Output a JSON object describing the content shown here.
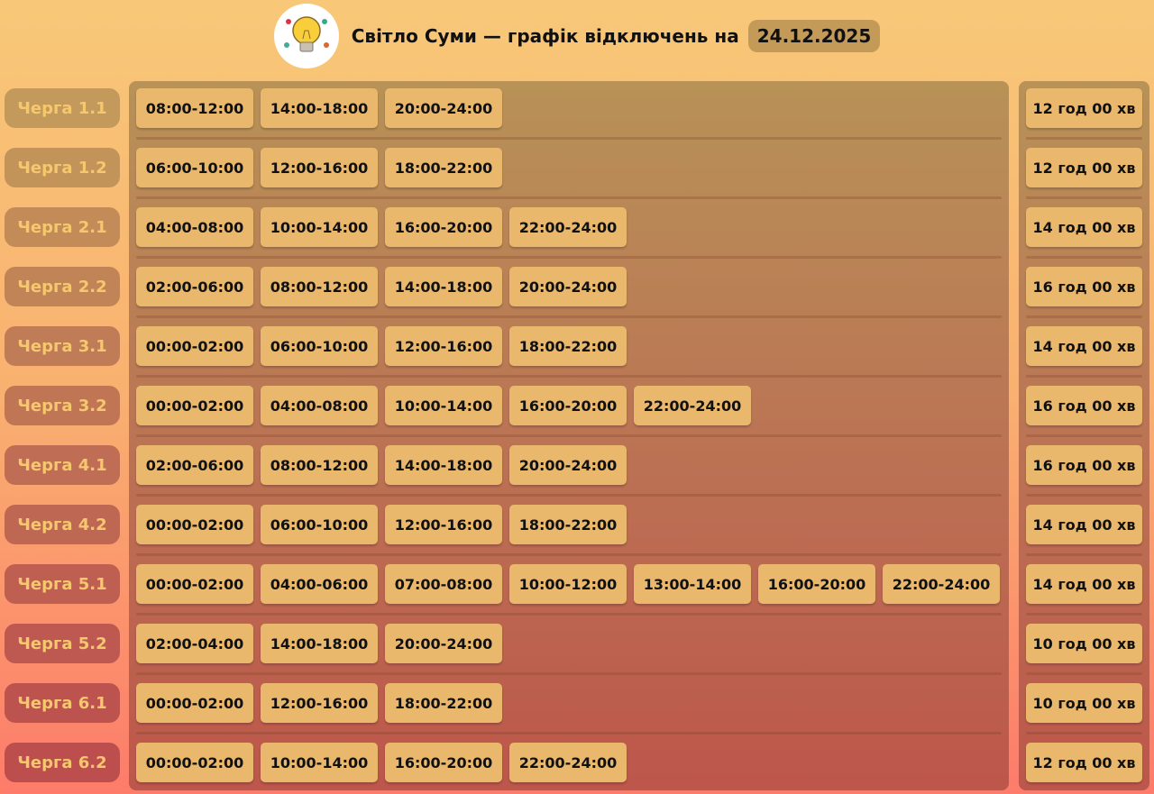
{
  "header": {
    "title": "Світло Суми — графік відключень на",
    "date": "24.12.2025",
    "logo_icon": "lightbulb-icon"
  },
  "queues": [
    {
      "label": "Черга 1.1",
      "slots": [
        "08:00-12:00",
        "14:00-18:00",
        "20:00-24:00"
      ],
      "total": "12 год 00 хв"
    },
    {
      "label": "Черга 1.2",
      "slots": [
        "06:00-10:00",
        "12:00-16:00",
        "18:00-22:00"
      ],
      "total": "12 год 00 хв"
    },
    {
      "label": "Черга 2.1",
      "slots": [
        "04:00-08:00",
        "10:00-14:00",
        "16:00-20:00",
        "22:00-24:00"
      ],
      "total": "14 год 00 хв"
    },
    {
      "label": "Черга 2.2",
      "slots": [
        "02:00-06:00",
        "08:00-12:00",
        "14:00-18:00",
        "20:00-24:00"
      ],
      "total": "16 год 00 хв"
    },
    {
      "label": "Черга 3.1",
      "slots": [
        "00:00-02:00",
        "06:00-10:00",
        "12:00-16:00",
        "18:00-22:00"
      ],
      "total": "14 год 00 хв"
    },
    {
      "label": "Черга 3.2",
      "slots": [
        "00:00-02:00",
        "04:00-08:00",
        "10:00-14:00",
        "16:00-20:00",
        "22:00-24:00"
      ],
      "total": "16 год 00 хв"
    },
    {
      "label": "Черга 4.1",
      "slots": [
        "02:00-06:00",
        "08:00-12:00",
        "14:00-18:00",
        "20:00-24:00"
      ],
      "total": "16 год 00 хв"
    },
    {
      "label": "Черга 4.2",
      "slots": [
        "00:00-02:00",
        "06:00-10:00",
        "12:00-16:00",
        "18:00-22:00"
      ],
      "total": "14 год 00 хв"
    },
    {
      "label": "Черга 5.1",
      "slots": [
        "00:00-02:00",
        "04:00-06:00",
        "07:00-08:00",
        "10:00-12:00",
        "13:00-14:00",
        "16:00-20:00",
        "22:00-24:00"
      ],
      "total": "14 год 00 хв"
    },
    {
      "label": "Черга 5.2",
      "slots": [
        "02:00-04:00",
        "14:00-18:00",
        "20:00-24:00"
      ],
      "total": "10 год 00 хв"
    },
    {
      "label": "Черга 6.1",
      "slots": [
        "00:00-02:00",
        "12:00-16:00",
        "18:00-22:00"
      ],
      "total": "10 год 00 хв"
    },
    {
      "label": "Черга 6.2",
      "slots": [
        "00:00-02:00",
        "10:00-14:00",
        "16:00-20:00",
        "22:00-24:00"
      ],
      "total": "12 год 00 хв"
    }
  ]
}
